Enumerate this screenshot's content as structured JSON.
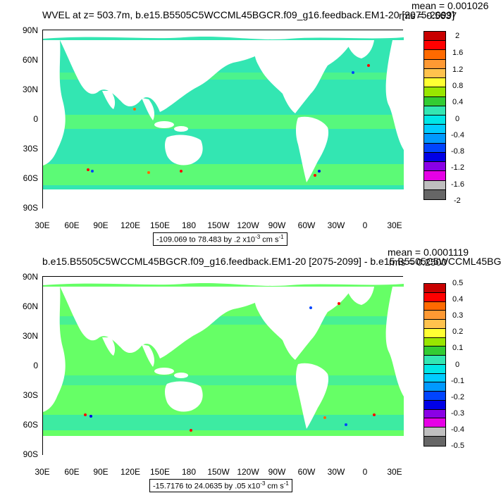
{
  "panels": [
    {
      "title": "WVEL at z= 503.7m, b.e15.B5505C5WCCML45BGCR.f09_g16.feedback.EM1-20 [2075-2099]",
      "mean": "mean = 0.001026",
      "rms": "rms = 0.5637",
      "range_text": "-109.069 to 78.483 by .2 x10",
      "range_exp": "-3",
      "range_unit": " cm s",
      "range_unit_exp": "-1",
      "legend_labels": [
        "2",
        "1.6",
        "1.2",
        "0.8",
        "0.4",
        "0",
        "-0.4",
        "-0.8",
        "-1.2",
        "-1.6",
        "-2"
      ]
    },
    {
      "title": "b.e15.B5505C5WCCML45BGCR.f09_g16.feedback.EM1-20 [2075-2099] - b.e15.B5505C5WCCML45BG",
      "mean": "mean = 0.0001119",
      "rms": "rms = 0.2500",
      "range_text": "-15.7176 to 24.0635 by .05 x10",
      "range_exp": "-3",
      "range_unit": " cm s",
      "range_unit_exp": "-1",
      "legend_labels": [
        "0.5",
        "0.4",
        "0.3",
        "0.2",
        "0.1",
        "0",
        "-0.1",
        "-0.2",
        "-0.3",
        "-0.4",
        "-0.5"
      ]
    }
  ],
  "y_ticks": [
    "90N",
    "60N",
    "30N",
    "0",
    "30S",
    "60S",
    "90S"
  ],
  "x_ticks": [
    "30E",
    "60E",
    "90E",
    "120E",
    "150E",
    "180",
    "150W",
    "120W",
    "90W",
    "60W",
    "30W",
    "0",
    "30E"
  ],
  "legend_colors": [
    "#c80000",
    "#ff0000",
    "#ff6a00",
    "#ff9933",
    "#ffc24d",
    "#ffff33",
    "#99e600",
    "#33cc33",
    "#33e6b2",
    "#00e6e6",
    "#00ccff",
    "#0099ff",
    "#0044ff",
    "#0000e6",
    "#8a00e6",
    "#e600e6",
    "#bfbfbf",
    "#666666"
  ],
  "map_colors": {
    "ocean": "#33e6b2",
    "ocean_alt": "#66ff66",
    "land": "#ffffff"
  }
}
